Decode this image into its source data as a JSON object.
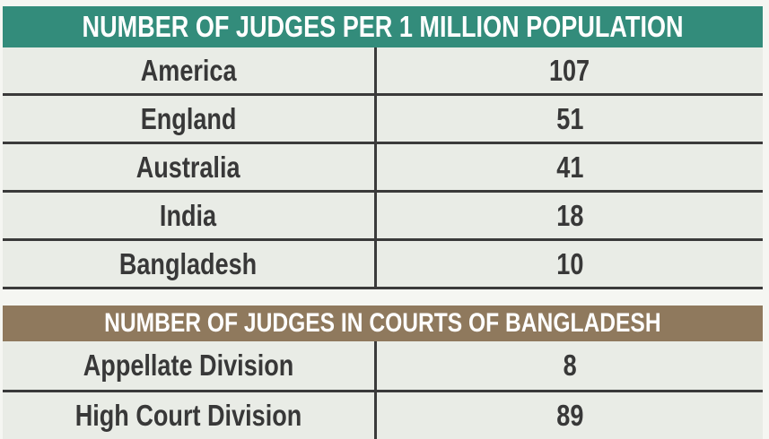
{
  "colors": {
    "table1_header_bg": "#338c7b",
    "table2_header_bg": "#8f795d",
    "cell_bg": "#e9ece6",
    "separator": "#3a3a3a",
    "header_text": "#ffffff",
    "cell_text": "#383838"
  },
  "tables": [
    {
      "title": "NUMBER OF JUDGES PER 1 MILLION POPULATION",
      "rows": [
        {
          "label": "America",
          "value": "107"
        },
        {
          "label": "England",
          "value": "51"
        },
        {
          "label": "Australia",
          "value": "41"
        },
        {
          "label": "India",
          "value": "18"
        },
        {
          "label": "Bangladesh",
          "value": "10"
        }
      ]
    },
    {
      "title": "NUMBER OF JUDGES IN COURTS OF BANGLADESH",
      "rows": [
        {
          "label": "Appellate Division",
          "value": "8"
        },
        {
          "label": "High Court Division",
          "value": "89"
        }
      ]
    }
  ],
  "chart_data": [
    {
      "type": "table",
      "title": "NUMBER OF JUDGES PER 1 MILLION POPULATION",
      "categories": [
        "America",
        "England",
        "Australia",
        "India",
        "Bangladesh"
      ],
      "values": [
        107,
        51,
        41,
        18,
        10
      ],
      "legend_position": "none",
      "grid": false
    },
    {
      "type": "table",
      "title": "NUMBER OF JUDGES IN COURTS OF BANGLADESH",
      "categories": [
        "Appellate Division",
        "High Court Division"
      ],
      "values": [
        8,
        89
      ],
      "legend_position": "none",
      "grid": false
    }
  ]
}
